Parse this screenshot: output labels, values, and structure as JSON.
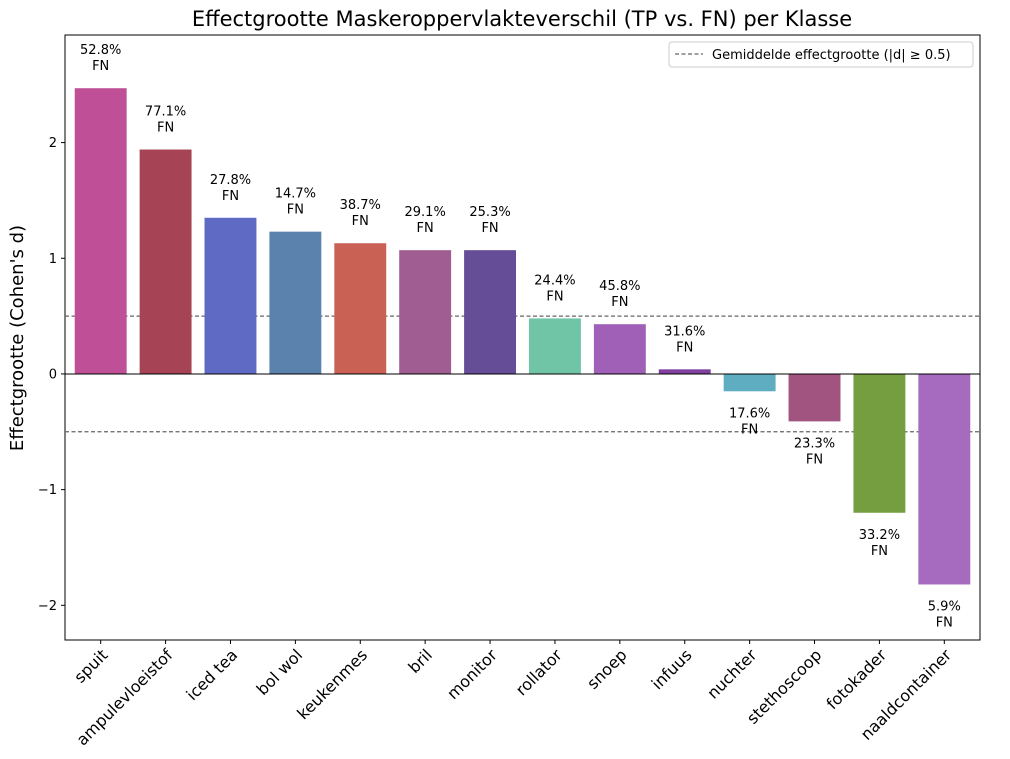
{
  "chart_data": {
    "type": "bar",
    "title": "Effectgrootte Maskeroppervlakteverschil (TP vs. FN) per Klasse",
    "xlabel": "",
    "ylabel": "Effectgrootte (Cohen's d)",
    "ylim": [
      -2.3,
      2.93
    ],
    "yticks": [
      -2,
      -1,
      0,
      1,
      2
    ],
    "ytick_labels": [
      "−2",
      "−1",
      "0",
      "1",
      "2"
    ],
    "grid": false,
    "categories": [
      "spuit",
      "ampulevloeistof",
      "iced tea",
      "bol wol",
      "keukenmes",
      "bril",
      "monitor",
      "rollator",
      "snoep",
      "infuus",
      "nuchter",
      "stethoscoop",
      "fotokader",
      "naaldcontainer"
    ],
    "values": [
      2.47,
      1.94,
      1.35,
      1.23,
      1.13,
      1.07,
      1.07,
      0.48,
      0.43,
      0.04,
      -0.15,
      -0.41,
      -1.2,
      -1.82
    ],
    "colors": [
      "#bf4f96",
      "#a64455",
      "#5e6ac3",
      "#5b81ad",
      "#c96254",
      "#a05d91",
      "#664d98",
      "#71c5a7",
      "#a060b8",
      "#8040a0",
      "#5eadc1",
      "#a0547f",
      "#759e41",
      "#a66bbf"
    ],
    "annotations": [
      {
        "pct": "52.8%",
        "tag": "FN"
      },
      {
        "pct": "77.1%",
        "tag": "FN"
      },
      {
        "pct": "27.8%",
        "tag": "FN"
      },
      {
        "pct": "14.7%",
        "tag": "FN"
      },
      {
        "pct": "38.7%",
        "tag": "FN"
      },
      {
        "pct": "29.1%",
        "tag": "FN"
      },
      {
        "pct": "25.3%",
        "tag": "FN"
      },
      {
        "pct": "24.4%",
        "tag": "FN"
      },
      {
        "pct": "45.8%",
        "tag": "FN"
      },
      {
        "pct": "31.6%",
        "tag": "FN"
      },
      {
        "pct": "17.6%",
        "tag": "FN"
      },
      {
        "pct": "23.3%",
        "tag": "FN"
      },
      {
        "pct": "33.2%",
        "tag": "FN"
      },
      {
        "pct": "5.9%",
        "tag": "FN"
      }
    ],
    "reference_lines": [
      0.5,
      -0.5
    ],
    "reference_line_color": "#666666",
    "zero_line": true,
    "legend": {
      "placement": "top-right",
      "entries": [
        {
          "label": "Gemiddelde effectgrootte (|d| ≥ 0.5)",
          "style": "dashed",
          "color": "#666666"
        }
      ]
    }
  }
}
